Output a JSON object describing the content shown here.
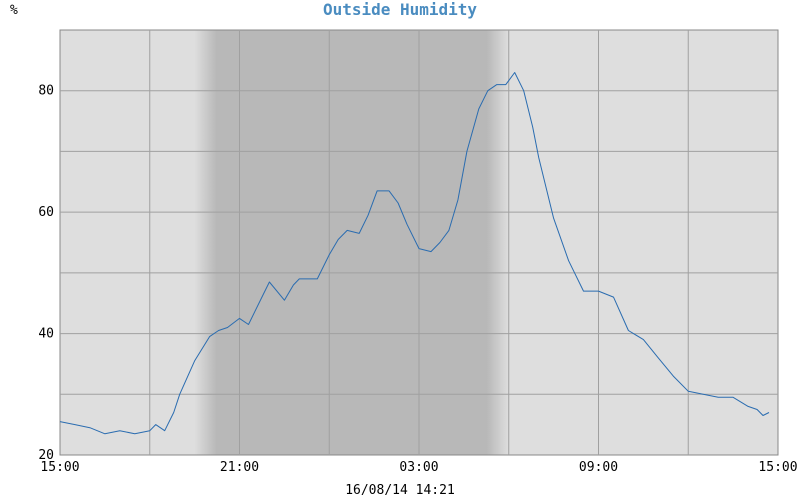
{
  "chart_data": {
    "type": "line",
    "title": "Outside Humidity",
    "ylabel": "%",
    "xlabel": "",
    "timestamp": "16/08/14 14:21",
    "ylim": [
      20,
      90
    ],
    "xlim": [
      0,
      24
    ],
    "y_ticks": [
      20,
      40,
      60,
      80
    ],
    "y_tick_labels": [
      "20",
      "40",
      "60",
      "80"
    ],
    "x_ticks": [
      0,
      6,
      12,
      18,
      24
    ],
    "x_tick_labels": [
      "15:00",
      "21:00",
      "03:00",
      "09:00",
      "15:00"
    ],
    "grid": true,
    "night_shading": {
      "start": 4.5,
      "end": 15.0
    },
    "colors": {
      "line": "#2a6cb0",
      "title": "#4a8cc0",
      "day_bg": "#dedede",
      "night_bg": "#b8b8b8",
      "grid": "#a0a0a0"
    },
    "series": [
      {
        "name": "",
        "x": [
          0,
          0.5,
          1.0,
          1.5,
          2.0,
          2.5,
          3.0,
          3.2,
          3.5,
          3.8,
          4.0,
          4.5,
          5.0,
          5.3,
          5.6,
          6.0,
          6.3,
          6.8,
          7.0,
          7.5,
          7.8,
          8.0,
          8.3,
          8.6,
          9.0,
          9.3,
          9.6,
          10.0,
          10.3,
          10.6,
          11.0,
          11.3,
          11.6,
          12.0,
          12.4,
          12.7,
          13.0,
          13.3,
          13.6,
          14.0,
          14.3,
          14.6,
          14.9,
          15.2,
          15.5,
          15.8,
          16.0,
          16.5,
          17.0,
          17.5,
          17.8,
          18.0,
          18.5,
          19.0,
          19.5,
          20.0,
          20.5,
          21.0,
          21.5,
          22.0,
          22.5,
          23.0,
          23.3,
          23.5,
          23.7
        ],
        "values": [
          25.5,
          25.0,
          24.5,
          23.5,
          24.0,
          23.5,
          24.0,
          25.0,
          24.0,
          27.0,
          30.0,
          35.5,
          39.5,
          40.5,
          41.0,
          42.5,
          41.5,
          46.5,
          48.5,
          45.5,
          48.0,
          49.0,
          49.0,
          49.0,
          53.0,
          55.5,
          57.0,
          56.5,
          59.5,
          63.5,
          63.5,
          61.5,
          58.0,
          54.0,
          53.5,
          55.0,
          57.0,
          62.0,
          70.0,
          77.0,
          80.0,
          81.0,
          81.0,
          83.0,
          80.0,
          74.0,
          69.0,
          59.0,
          52.0,
          47.0,
          47.0,
          47.0,
          46.0,
          40.5,
          39.0,
          36.0,
          33.0,
          30.5,
          30.0,
          29.5,
          29.5,
          28.0,
          27.5,
          26.5,
          27.0
        ]
      }
    ]
  }
}
